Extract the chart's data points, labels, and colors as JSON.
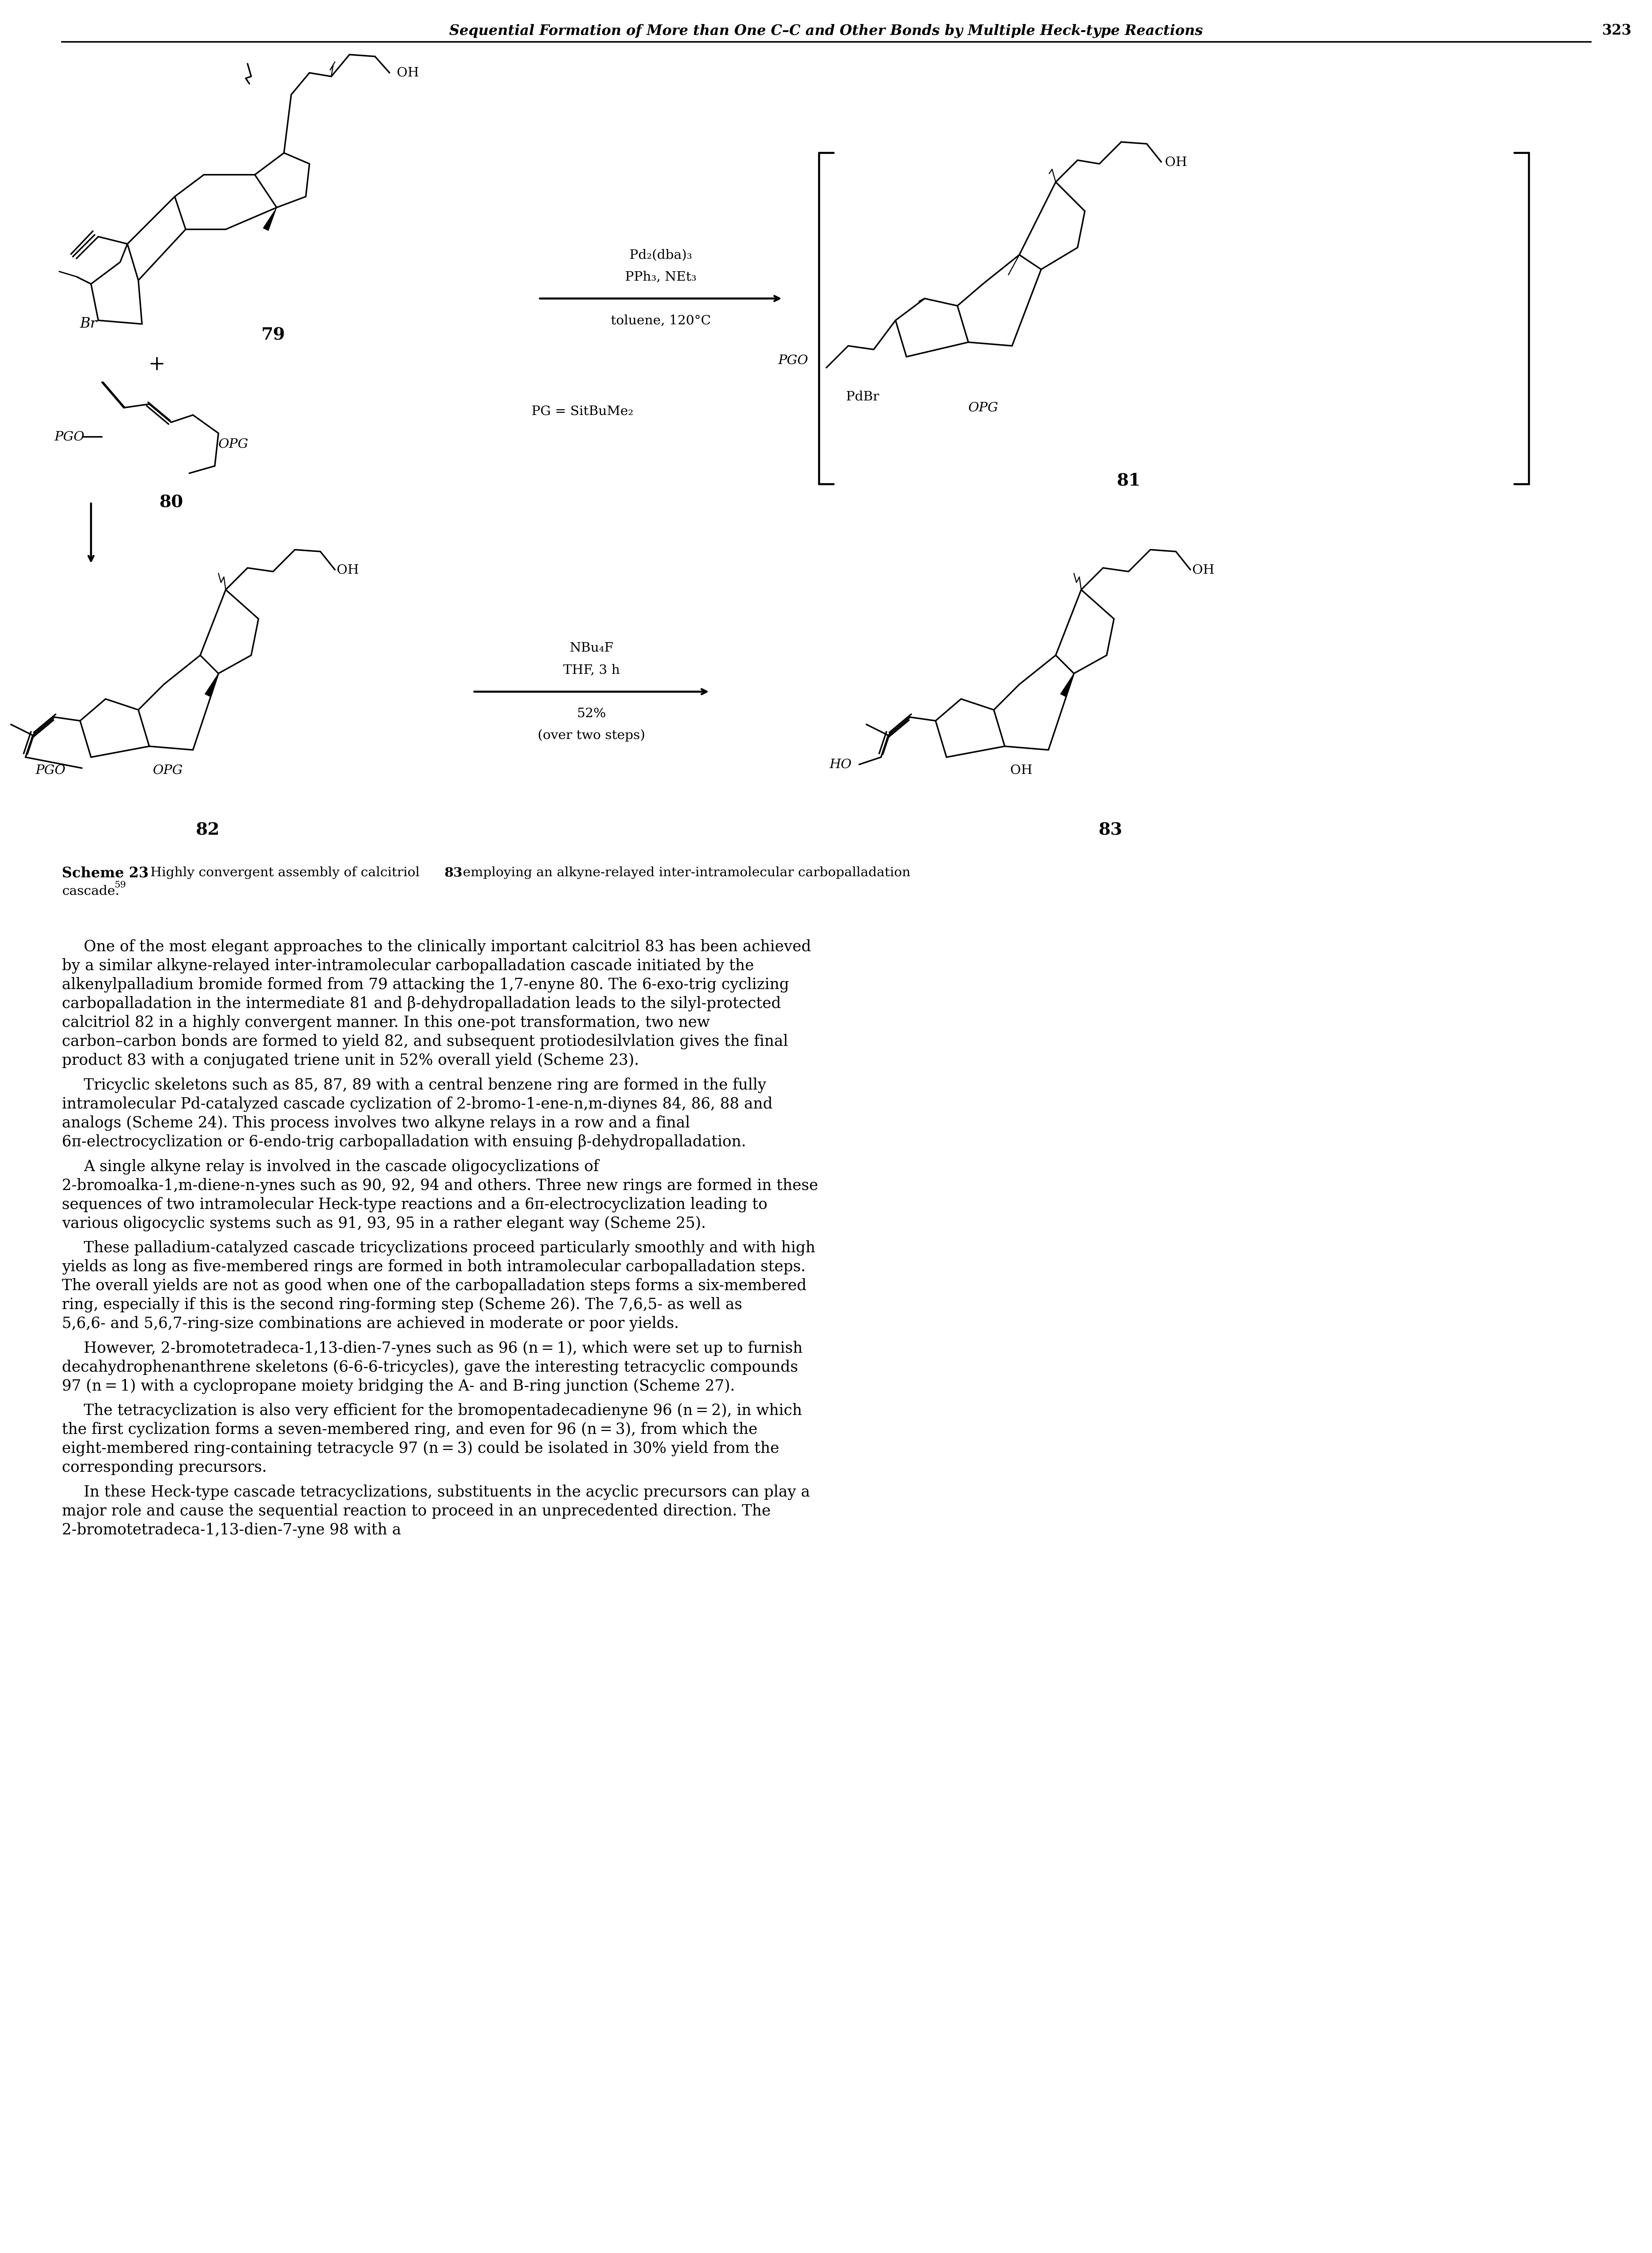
{
  "page_title": "Sequential Formation of More than One C–C and Other Bonds by Multiple Heck-type Reactions",
  "page_number": "323",
  "scheme_label": "Scheme 23",
  "scheme_caption": "Highly convergent assembly of calcitriol     83 employing an alkyne-relayed inter-intramolecular carbopalladation cascade.",
  "scheme_caption_ref": "59",
  "reaction_conditions_1": [
    "Pd₂(dba)₃",
    "PPh₃, NEt₃",
    "toluene, 120°C"
  ],
  "reaction_conditions_2": [
    "NBu₄F",
    "THF, 3 h",
    "52%",
    "(over two steps)"
  ],
  "pg_def": "PG = SitBuMe₂",
  "compound_labels": [
    "79",
    "80",
    "81",
    "82",
    "83"
  ],
  "body_text": [
    "One of the most elegant approaches to the clinically important calcitriol 83 has been achieved by a similar alkyne-relayed inter-intramolecular carbopalladation cascade initiated by the alkenylpalladium bromide formed from 79 attacking the 1,7-enyne 80. The 6-exo-trig cyclizing carbopalladation in the intermediate 81 and β-dehydropalladation leads to the silyl-protected calcitriol 82 in a highly convergent manner. In this one-pot transformation, two new carbon–carbon bonds are formed to yield 82, and subsequent protiodesilvlation gives the final product 83 with a conjugated triene unit in 52% overall yield (Scheme 23).",
    "Tricyclic skeletons such as 85, 87, 89 with a central benzene ring are formed in the fully intramolecular Pd-catalyzed cascade cyclization of 2-bromo-1-ene-n,m-diynes 84, 86, 88 and analogs (Scheme 24). This process involves two alkyne relays in a row and a final 6π-electrocyclization or 6-endo-trig carbopalladation with ensuing β-dehydropalladation.",
    "A single alkyne relay is involved in the cascade oligocyclizations of 2-bromoalka-1,m-diene-n-ynes such as 90, 92, 94 and others. Three new rings are formed in these sequences of two intramolecular Heck-type reactions and a 6π-electrocyclization leading to various oligocyclic systems such as 91, 93, 95 in a rather elegant way (Scheme 25).",
    "These palladium-catalyzed cascade tricyclizations proceed particularly smoothly and with high yields as long as five-membered rings are formed in both intramolecular carbopalladation steps. The overall yields are not as good when one of the carbopalladation steps forms a six-membered ring, especially if this is the second ring-forming step (Scheme 26). The 7,6,5- as well as 5,6,6- and 5,6,7-ring-size combinations are achieved in moderate or poor yields.",
    "However, 2-bromotetradeca-1,13-dien-7-ynes such as 96 (n = 1), which were set up to furnish decahydrophenanthrene skeletons (6-6-6-tricycles), gave the interesting tetracyclic compounds 97 (n = 1) with a cyclopropane moiety bridging the A- and B-ring junction (Scheme 27).",
    "The tetracyclization is also very efficient for the bromopentadecadienyne 96 (n = 2), in which the first cyclization forms a seven-membered ring, and even for 96 (n = 3), from which the eight-membered ring-containing tetracycle 97 (n = 3) could be isolated in 30% yield from the corresponding precursors.",
    "In these Heck-type cascade tetracyclizations, substituents in the acyclic precursors can play a major role and cause the sequential reaction to proceed in an unprecedented direction. The 2-bromotetradeca-1,13-dien-7-yne 98 with a"
  ],
  "background_color": "#ffffff",
  "text_color": "#000000",
  "header_fontsize": 28,
  "page_num_fontsize": 28,
  "body_fontsize": 30,
  "caption_fontsize": 28
}
